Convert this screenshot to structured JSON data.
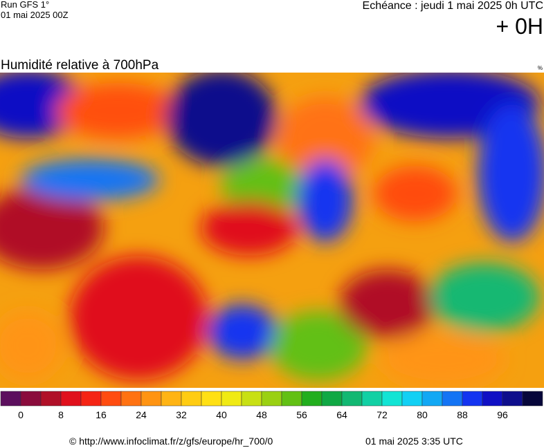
{
  "header": {
    "run": "Run GFS 1°",
    "run_date": "01 mai 2025 00Z",
    "forecast": "Echéance : jeudi 1 mai 2025 0h UTC",
    "lead": "+ 0H"
  },
  "map": {
    "title": "Humidité relative à 700hPa",
    "unit": "%"
  },
  "colorbar": {
    "colors": [
      "#5c0f5e",
      "#8a0c3c",
      "#b01028",
      "#e0101c",
      "#f52414",
      "#ff4c10",
      "#ff7212",
      "#ff9412",
      "#ffb414",
      "#ffcc12",
      "#ffe014",
      "#f0ea14",
      "#c8e014",
      "#9ad012",
      "#62c014",
      "#22ae1e",
      "#10a844",
      "#12b872",
      "#12d0a4",
      "#12e4d4",
      "#12d0f4",
      "#12a8f4",
      "#1474f4",
      "#1434f0",
      "#1010c4",
      "#0e0e8c",
      "#06063a"
    ],
    "ticks": [
      0,
      8,
      16,
      24,
      32,
      40,
      48,
      56,
      64,
      72,
      80,
      88,
      96
    ]
  },
  "footer": {
    "url": "© http://www.infoclimat.fr/z/gfs/europe/hr_700/0",
    "date": "01 mai 2025  3:35 UTC"
  }
}
